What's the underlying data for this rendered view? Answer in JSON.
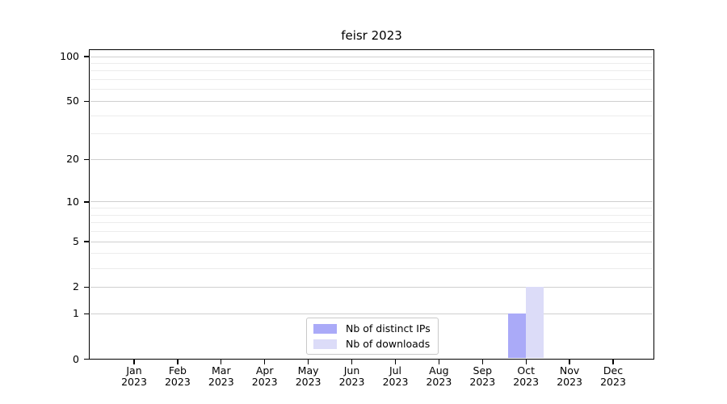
{
  "chart_data": {
    "type": "bar",
    "title": "feisr 2023",
    "categories": [
      "Jan",
      "Feb",
      "Mar",
      "Apr",
      "May",
      "Jun",
      "Jul",
      "Aug",
      "Sep",
      "Oct",
      "Nov",
      "Dec"
    ],
    "tick_year": "2023",
    "series": [
      {
        "name": "Nb of distinct IPs",
        "color": "#aaaaf8",
        "values": [
          0,
          0,
          0,
          0,
          0,
          0,
          0,
          0,
          0,
          1,
          0,
          0
        ]
      },
      {
        "name": "Nb of downloads",
        "color": "#dcdcf8",
        "values": [
          0,
          0,
          0,
          0,
          0,
          0,
          0,
          0,
          0,
          2,
          0,
          0
        ]
      }
    ],
    "yscale": "log1p",
    "ylim": [
      0,
      112
    ],
    "y_ticks": [
      0,
      1,
      2,
      5,
      10,
      20,
      50,
      100
    ],
    "y_minor_gridlines": [
      3,
      4,
      6,
      7,
      8,
      9,
      30,
      40,
      60,
      70,
      80,
      90
    ],
    "grid": "on",
    "legend_position": "lower center",
    "xlabel": "",
    "ylabel": ""
  },
  "colors": {
    "major_grid": "#cfcfcf",
    "minor_grid": "#ececec",
    "axis": "#000000",
    "background": "#ffffff",
    "legend_border": "#c9c9c9"
  }
}
